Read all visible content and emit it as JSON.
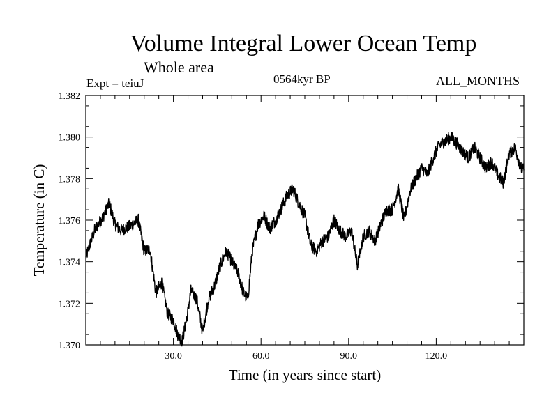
{
  "header": {
    "title": "Volume Integral Lower Ocean Temp",
    "subtitle": "Whole area",
    "experiment": "Expt = teiuJ",
    "period": "0564kyr BP",
    "months": "ALL_MONTHS"
  },
  "chart_data": {
    "type": "line",
    "title": "Volume Integral Lower Ocean Temp",
    "xlabel": "Time (in years since start)",
    "ylabel": "Temperature (in C)",
    "xlim": [
      0,
      150
    ],
    "ylim": [
      1.37,
      1.382
    ],
    "xticks": [
      30,
      60,
      90,
      120
    ],
    "xtick_labels": [
      "30.0",
      "60.0",
      "90.0",
      "120.0"
    ],
    "yticks": [
      1.37,
      1.372,
      1.374,
      1.376,
      1.378,
      1.38,
      1.382
    ],
    "ytick_labels": [
      "1.370",
      "1.372",
      "1.374",
      "1.376",
      "1.378",
      "1.380",
      "1.382"
    ],
    "grid": false,
    "series": [
      {
        "name": "Temperature",
        "x": [
          0,
          3,
          6,
          8,
          10,
          12,
          15,
          18,
          20,
          22,
          24,
          26,
          28,
          30,
          31.5,
          33,
          34.5,
          36,
          38,
          40,
          42,
          44,
          46,
          48,
          50,
          52,
          54,
          55.5,
          57,
          59,
          61,
          63,
          65,
          67,
          69,
          71,
          73,
          75,
          77,
          79,
          81,
          83,
          85,
          87,
          89,
          91,
          93,
          95,
          97,
          99,
          101,
          103,
          105,
          107,
          109,
          111,
          113,
          115,
          117,
          119,
          121,
          123,
          125,
          127,
          129,
          131,
          133,
          135,
          137,
          139,
          141,
          143,
          145,
          147,
          149,
          150
        ],
        "values": [
          1.3742,
          1.3755,
          1.3762,
          1.3768,
          1.3758,
          1.3755,
          1.3757,
          1.376,
          1.3745,
          1.3746,
          1.3725,
          1.373,
          1.3715,
          1.3712,
          1.3705,
          1.3702,
          1.3712,
          1.3726,
          1.3722,
          1.3706,
          1.3722,
          1.3728,
          1.3738,
          1.3745,
          1.374,
          1.3735,
          1.3725,
          1.3722,
          1.3745,
          1.3758,
          1.3762,
          1.3756,
          1.376,
          1.3766,
          1.3772,
          1.3775,
          1.3768,
          1.3762,
          1.3748,
          1.3745,
          1.375,
          1.3752,
          1.376,
          1.3755,
          1.3752,
          1.3755,
          1.3738,
          1.3752,
          1.3755,
          1.375,
          1.3758,
          1.3765,
          1.3765,
          1.3775,
          1.376,
          1.3774,
          1.378,
          1.3785,
          1.3782,
          1.379,
          1.3796,
          1.3798,
          1.38,
          1.3797,
          1.3793,
          1.379,
          1.3795,
          1.379,
          1.3785,
          1.3788,
          1.3782,
          1.3778,
          1.3792,
          1.3795,
          1.3785,
          1.3784
        ]
      }
    ]
  }
}
